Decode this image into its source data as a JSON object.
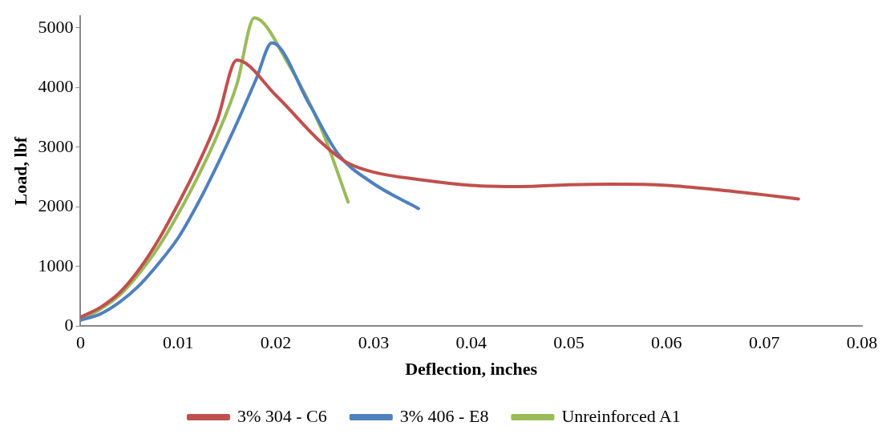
{
  "chart_data": {
    "type": "line",
    "xlabel": "Deflection, inches",
    "ylabel": "Load, lbf",
    "xlim": [
      0,
      0.08
    ],
    "xticks": [
      0,
      0.01,
      0.02,
      0.03,
      0.04,
      0.05,
      0.06,
      0.07,
      0.08
    ],
    "ylim": [
      0,
      5200
    ],
    "yticks": [
      0,
      1000,
      2000,
      3000,
      4000,
      5000
    ],
    "grid": false,
    "legend": "bottom",
    "marker": "none",
    "line_style": "solid",
    "series": [
      {
        "name": "3% 304 - C6",
        "color": "#c0504d",
        "x": [
          0,
          0.002,
          0.004,
          0.006,
          0.008,
          0.01,
          0.012,
          0.014,
          0.016,
          0.02,
          0.0247,
          0.0272,
          0.0298,
          0.035,
          0.04,
          0.045,
          0.05,
          0.055,
          0.06,
          0.065,
          0.07,
          0.0735
        ],
        "values": [
          150,
          310,
          560,
          950,
          1450,
          2050,
          2700,
          3450,
          4460,
          3870,
          3070,
          2750,
          2590,
          2450,
          2360,
          2340,
          2370,
          2380,
          2360,
          2290,
          2200,
          2130
        ]
      },
      {
        "name": "3% 406 - E8",
        "color": "#4f81bd",
        "x": [
          0,
          0.002,
          0.004,
          0.006,
          0.008,
          0.01,
          0.012,
          0.014,
          0.016,
          0.018,
          0.0196,
          0.0234,
          0.0264,
          0.0298,
          0.0346
        ],
        "values": [
          100,
          200,
          400,
          680,
          1050,
          1480,
          2050,
          2700,
          3400,
          4150,
          4750,
          3730,
          2880,
          2410,
          1970
        ]
      },
      {
        "name": "Unreinforced A1",
        "color": "#9bbb59",
        "x": [
          0,
          0.002,
          0.004,
          0.006,
          0.008,
          0.01,
          0.012,
          0.014,
          0.016,
          0.0178,
          0.0213,
          0.0247,
          0.0274
        ],
        "values": [
          100,
          280,
          520,
          880,
          1330,
          1880,
          2500,
          3200,
          4050,
          5170,
          4390,
          3290,
          2080
        ]
      }
    ]
  }
}
